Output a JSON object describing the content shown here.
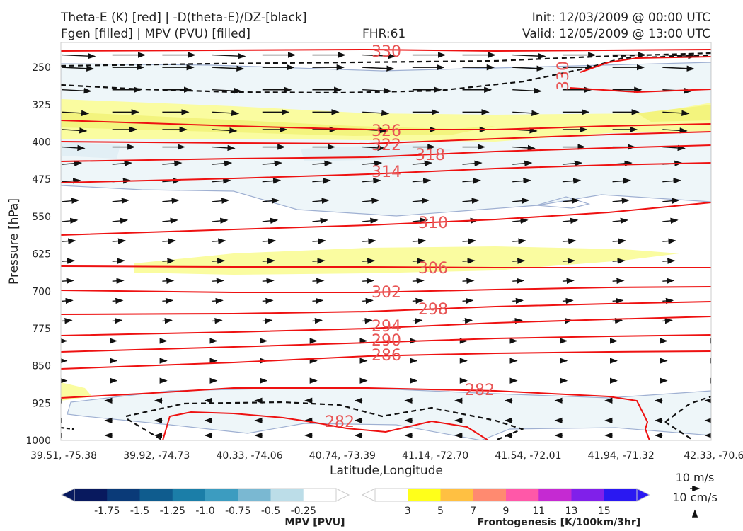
{
  "header": {
    "line1_left": "Theta-E (K) [red] | -D(theta-E)/DZ-[black]",
    "line2_left": "Fgen [filled] | MPV (PVU) [filled]",
    "fhr": "FHR:61",
    "init": "Init: 12/03/2009 @ 00:00 UTC",
    "valid": "Valid: 12/05/2009 @ 13:00 UTC"
  },
  "chart_data": {
    "type": "cross-section",
    "ylabel": "Pressure [hPa]",
    "xlabel": "Latitude,Longitude",
    "yticks": [
      250,
      325,
      400,
      475,
      550,
      625,
      700,
      775,
      850,
      925,
      1000
    ],
    "ylim": [
      200,
      1000
    ],
    "y_inverted": true,
    "xticks": [
      "39.51, -75.38",
      "39.92, -74.73",
      "40.33, -74.06",
      "40.74, -73.39",
      "41.14, -72.70",
      "41.54, -72.01",
      "41.94, -71.32",
      "42.33, -70.6"
    ],
    "theta_e_contour_labels": [
      330,
      330,
      326,
      322,
      318,
      314,
      310,
      306,
      302,
      298,
      294,
      290,
      286,
      282,
      282
    ],
    "mpv_colorbar": {
      "title": "MPV [PVU]",
      "ticks": [
        "-1.75",
        "-1.5",
        "-1.25",
        "-1.0",
        "-0.75",
        "-0.5",
        "-0.25"
      ],
      "colors": [
        "#08195e",
        "#0a3a78",
        "#0f5c8e",
        "#1b7ea8",
        "#3c9cc0",
        "#7ab8d2",
        "#bcdde8",
        "#ffffff"
      ]
    },
    "fgen_colorbar": {
      "title": "Frontogenesis [K/100km/3hr]",
      "ticks": [
        "3",
        "5",
        "7",
        "9",
        "11",
        "13",
        "15"
      ],
      "colors": [
        "#ffffff",
        "#ffff1a",
        "#ffc042",
        "#ff8a70",
        "#ff58a8",
        "#c52ad2",
        "#8020ea",
        "#2a18f2"
      ]
    },
    "wind_reference": {
      "horizontal": "10 m/s",
      "vertical": "10 cm/s"
    }
  }
}
